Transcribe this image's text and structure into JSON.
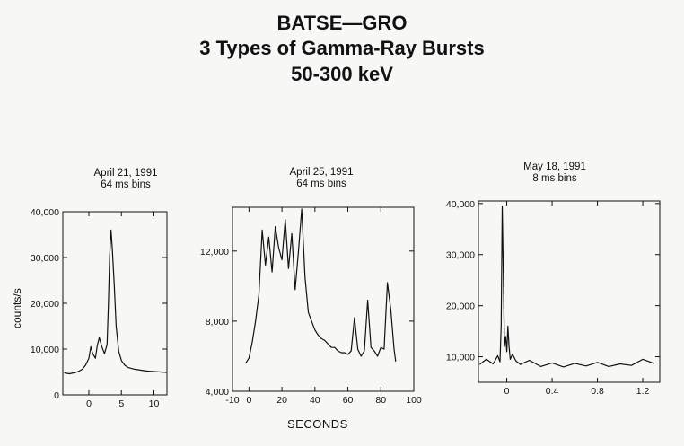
{
  "title_lines": [
    "BATSE—GRO",
    "3 Types of Gamma-Ray Bursts",
    "50-300 keV"
  ],
  "ylabel": "counts/s",
  "xlabel": "SECONDS",
  "chart_data": [
    {
      "type": "line",
      "date": "April 21, 1991",
      "bins": "64 ms bins",
      "xlim": [
        -4,
        12
      ],
      "ylim": [
        0,
        40000
      ],
      "xticks": [
        0,
        5,
        10
      ],
      "xtick_labels": [
        "0",
        "5",
        "10"
      ],
      "yticks": [
        0,
        10000,
        20000,
        30000,
        40000
      ],
      "ytick_labels": [
        "0",
        "10,000",
        "20,000",
        "30,000",
        "40,000"
      ],
      "x": [
        -3.8,
        -3,
        -2,
        -1.5,
        -1,
        -0.5,
        0,
        0.3,
        0.6,
        1,
        1.3,
        1.6,
        2,
        2.4,
        2.8,
        3,
        3.2,
        3.4,
        3.6,
        3.9,
        4.2,
        4.6,
        5,
        5.5,
        6,
        7,
        8,
        9,
        10,
        11,
        12
      ],
      "y": [
        4800,
        4600,
        4900,
        5200,
        5600,
        6500,
        8000,
        10500,
        9000,
        8000,
        10800,
        12500,
        10500,
        9000,
        11000,
        20000,
        30500,
        36000,
        32000,
        24000,
        15000,
        9500,
        7500,
        6500,
        6000,
        5600,
        5400,
        5200,
        5100,
        5000,
        4900
      ]
    },
    {
      "type": "line",
      "date": "April 25, 1991",
      "bins": "64 ms bins",
      "xlim": [
        -10,
        100
      ],
      "ylim": [
        4000,
        14500
      ],
      "xticks": [
        -10,
        0,
        20,
        40,
        60,
        80,
        100
      ],
      "xtick_labels": [
        "-10",
        "0",
        "20",
        "40",
        "60",
        "80",
        "100"
      ],
      "yticks": [
        4000,
        8000,
        12000
      ],
      "ytick_labels": [
        "4,000",
        "8,000",
        "12,000"
      ],
      "x": [
        -2,
        0,
        2,
        4,
        6,
        8,
        10,
        12,
        14,
        16,
        18,
        20,
        22,
        24,
        26,
        28,
        30,
        32,
        34,
        36,
        38,
        40,
        42,
        44,
        46,
        48,
        50,
        52,
        54,
        56,
        58,
        60,
        62,
        64,
        66,
        68,
        70,
        72,
        74,
        76,
        78,
        80,
        82,
        84,
        86,
        88,
        89
      ],
      "y": [
        5600,
        5900,
        6800,
        8000,
        9500,
        13200,
        11200,
        12800,
        10800,
        13400,
        12200,
        11500,
        13800,
        11000,
        13000,
        9800,
        12000,
        14400,
        10500,
        8500,
        8000,
        7500,
        7200,
        7000,
        6900,
        6700,
        6500,
        6500,
        6300,
        6200,
        6200,
        6100,
        6300,
        8200,
        6400,
        6000,
        6300,
        9200,
        6500,
        6300,
        6000,
        6500,
        6400,
        10200,
        8700,
        6400,
        5700
      ]
    },
    {
      "type": "line",
      "date": "May 18, 1991",
      "bins": "8 ms bins",
      "xlim": [
        -0.25,
        1.35
      ],
      "ylim": [
        5000,
        40500
      ],
      "xticks": [
        0,
        0.4,
        0.8,
        1.2
      ],
      "xtick_labels": [
        "0",
        "0.4",
        "0.8",
        "1.2"
      ],
      "yticks": [
        10000,
        20000,
        30000,
        40000
      ],
      "ytick_labels": [
        "10,000",
        "20,000",
        "30,000",
        "40,000"
      ],
      "x": [
        -0.24,
        -0.18,
        -0.12,
        -0.08,
        -0.06,
        -0.05,
        -0.04,
        -0.03,
        -0.02,
        -0.01,
        0,
        0.01,
        0.02,
        0.03,
        0.05,
        0.08,
        0.12,
        0.2,
        0.3,
        0.4,
        0.5,
        0.6,
        0.7,
        0.8,
        0.9,
        1,
        1.1,
        1.2,
        1.3
      ],
      "y": [
        8500,
        9500,
        8600,
        10200,
        9000,
        16000,
        39500,
        25000,
        12000,
        14000,
        11000,
        16000,
        12000,
        9500,
        10500,
        9200,
        8500,
        9300,
        8100,
        8800,
        8000,
        8700,
        8200,
        8900,
        8100,
        8600,
        8300,
        9500,
        8700
      ]
    }
  ]
}
